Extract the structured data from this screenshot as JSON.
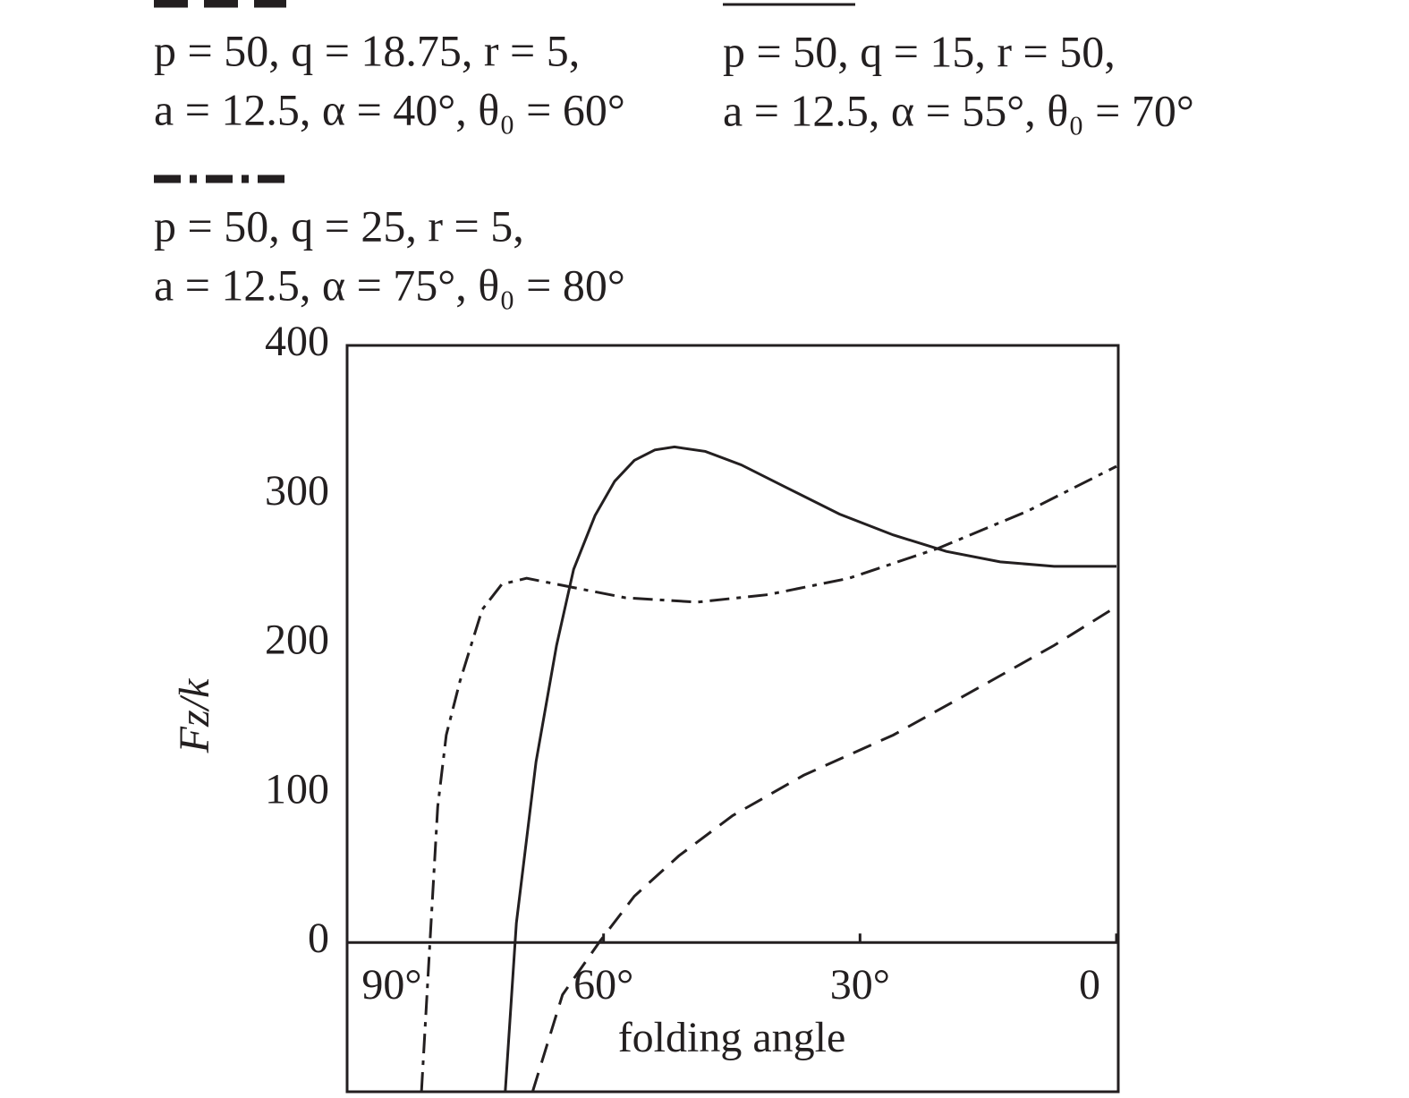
{
  "chart_data": {
    "type": "line",
    "xlabel": "folding angle",
    "ylabel": "Fz/k",
    "xlim": [
      90,
      0
    ],
    "ylim": [
      -100,
      400
    ],
    "xticks": [
      {
        "value": 90,
        "label": "90°"
      },
      {
        "value": 60,
        "label": "60°"
      },
      {
        "value": 30,
        "label": "30°"
      },
      0
    ],
    "yticks": [
      0,
      100,
      200,
      300,
      400
    ],
    "series": [
      {
        "name": [
          "p = 50, q = 18.75, r = 5,",
          "a = 12.5, α = 40°, θ₀ = 60°"
        ],
        "color": "#231f20",
        "dash": "dashed",
        "x": [
          68.3,
          64.8,
          60.4,
          56.4,
          51.2,
          44.9,
          36.6,
          26.1,
          15.7,
          7.3,
          0
        ],
        "values": [
          -100,
          -35,
          1,
          31,
          58,
          85,
          112,
          139,
          172,
          199,
          225
        ]
      },
      {
        "name": [
          "p = 50, q = 15, r = 50,",
          "a = 12.5, α = 55°, θ₀ = 70°"
        ],
        "color": "#231f20",
        "dash": "solid",
        "x": [
          71.5,
          70.2,
          67.9,
          65.5,
          63.5,
          61.0,
          58.7,
          56.4,
          54.0,
          51.7,
          48.1,
          43.9,
          38.7,
          32.4,
          26.1,
          19.9,
          13.6,
          7.3,
          0
        ],
        "values": [
          -100,
          13,
          121,
          199,
          250,
          286,
          309,
          323,
          330,
          332,
          329,
          320,
          305,
          287,
          273,
          262,
          255,
          252,
          252
        ]
      },
      {
        "name": [
          "p = 50, q = 25, r = 5,",
          "a = 12.5, α = 75°, θ₀ = 80°"
        ],
        "color": "#231f20",
        "dash": "dashdot",
        "x": [
          81.3,
          80.3,
          79.4,
          78.4,
          76.8,
          74.2,
          71.9,
          69.0,
          63.7,
          57.5,
          49.1,
          40.8,
          31.3,
          20.9,
          10.4,
          0
        ],
        "values": [
          -100,
          1,
          91,
          139,
          175,
          223,
          240,
          244,
          238,
          231,
          228,
          233,
          244,
          264,
          289,
          319
        ]
      }
    ]
  }
}
